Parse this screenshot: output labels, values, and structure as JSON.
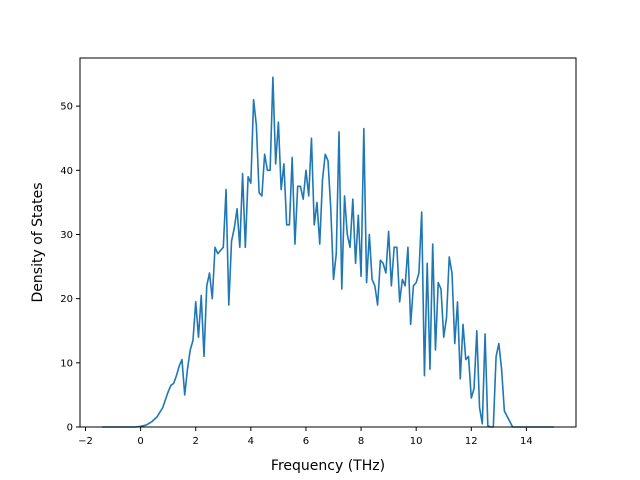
{
  "chart_data": {
    "type": "line",
    "xlabel": "Frequency (THz)",
    "ylabel": "Density of States",
    "xlim": [
      -2.2,
      15.8
    ],
    "ylim": [
      0,
      57.5
    ],
    "xticks": [
      -2,
      0,
      2,
      4,
      6,
      8,
      10,
      12,
      14
    ],
    "yticks": [
      0,
      10,
      20,
      30,
      40,
      50
    ],
    "grid": false,
    "legend": "none",
    "series": [
      {
        "color": "#1f77b4",
        "x": [
          -1.4,
          -1.0,
          -0.6,
          -0.2,
          0.0,
          0.2,
          0.4,
          0.6,
          0.8,
          1.0,
          1.1,
          1.2,
          1.3,
          1.4,
          1.5,
          1.6,
          1.7,
          1.8,
          1.9,
          2.0,
          2.1,
          2.2,
          2.3,
          2.4,
          2.5,
          2.6,
          2.7,
          2.8,
          2.9,
          3.0,
          3.1,
          3.2,
          3.3,
          3.4,
          3.5,
          3.6,
          3.7,
          3.8,
          3.9,
          4.0,
          4.1,
          4.2,
          4.3,
          4.4,
          4.5,
          4.6,
          4.7,
          4.8,
          4.9,
          5.0,
          5.1,
          5.2,
          5.3,
          5.4,
          5.5,
          5.6,
          5.7,
          5.8,
          5.9,
          6.0,
          6.1,
          6.2,
          6.3,
          6.4,
          6.5,
          6.6,
          6.7,
          6.8,
          6.9,
          7.0,
          7.1,
          7.2,
          7.3,
          7.4,
          7.5,
          7.6,
          7.7,
          7.8,
          7.9,
          8.0,
          8.1,
          8.2,
          8.3,
          8.4,
          8.5,
          8.6,
          8.7,
          8.8,
          8.9,
          9.0,
          9.1,
          9.2,
          9.3,
          9.4,
          9.5,
          9.6,
          9.7,
          9.8,
          9.9,
          10.0,
          10.1,
          10.2,
          10.3,
          10.4,
          10.5,
          10.6,
          10.7,
          10.8,
          10.9,
          11.0,
          11.1,
          11.2,
          11.3,
          11.4,
          11.5,
          11.6,
          11.7,
          11.8,
          11.9,
          12.0,
          12.1,
          12.2,
          12.3,
          12.4,
          12.5,
          12.6,
          12.7,
          12.8,
          12.9,
          13.0,
          13.1,
          13.2,
          13.5,
          14.0,
          15.0
        ],
        "y": [
          0,
          0,
          0,
          0,
          0.1,
          0.3,
          0.8,
          1.6,
          3.0,
          5.5,
          6.5,
          6.8,
          8.0,
          9.5,
          10.5,
          5.0,
          9.0,
          12.0,
          13.5,
          19.5,
          14.0,
          20.5,
          11.0,
          22.0,
          24.0,
          20.0,
          28.0,
          27.0,
          27.5,
          28.0,
          37.0,
          19.0,
          29.0,
          31.0,
          34.0,
          28.0,
          39.5,
          28.0,
          39.0,
          38.0,
          51.0,
          47.0,
          36.5,
          36.0,
          42.5,
          40.0,
          40.0,
          54.5,
          41.0,
          47.5,
          37.0,
          41.0,
          31.5,
          31.5,
          42.0,
          28.5,
          37.5,
          37.5,
          35.5,
          40.0,
          36.0,
          45.0,
          31.5,
          35.0,
          28.5,
          38.5,
          42.5,
          41.5,
          34.0,
          23.0,
          27.0,
          46.0,
          21.5,
          36.0,
          30.0,
          28.0,
          35.5,
          25.5,
          33.0,
          23.5,
          46.5,
          22.5,
          30.0,
          23.0,
          22.0,
          19.0,
          26.0,
          25.5,
          24.0,
          30.5,
          22.0,
          28.0,
          28.0,
          19.5,
          23.0,
          22.0,
          28.0,
          16.0,
          22.0,
          22.5,
          24.0,
          33.5,
          8.0,
          25.5,
          9.0,
          28.5,
          12.0,
          22.5,
          21.5,
          14.0,
          17.0,
          26.5,
          24.0,
          13.0,
          19.5,
          7.5,
          16.0,
          10.5,
          11.0,
          4.5,
          6.0,
          15.0,
          3.0,
          0.5,
          14.5,
          0.2,
          0.0,
          0.0,
          11.0,
          13.0,
          9.0,
          2.5,
          0.0,
          0,
          0
        ]
      }
    ]
  }
}
